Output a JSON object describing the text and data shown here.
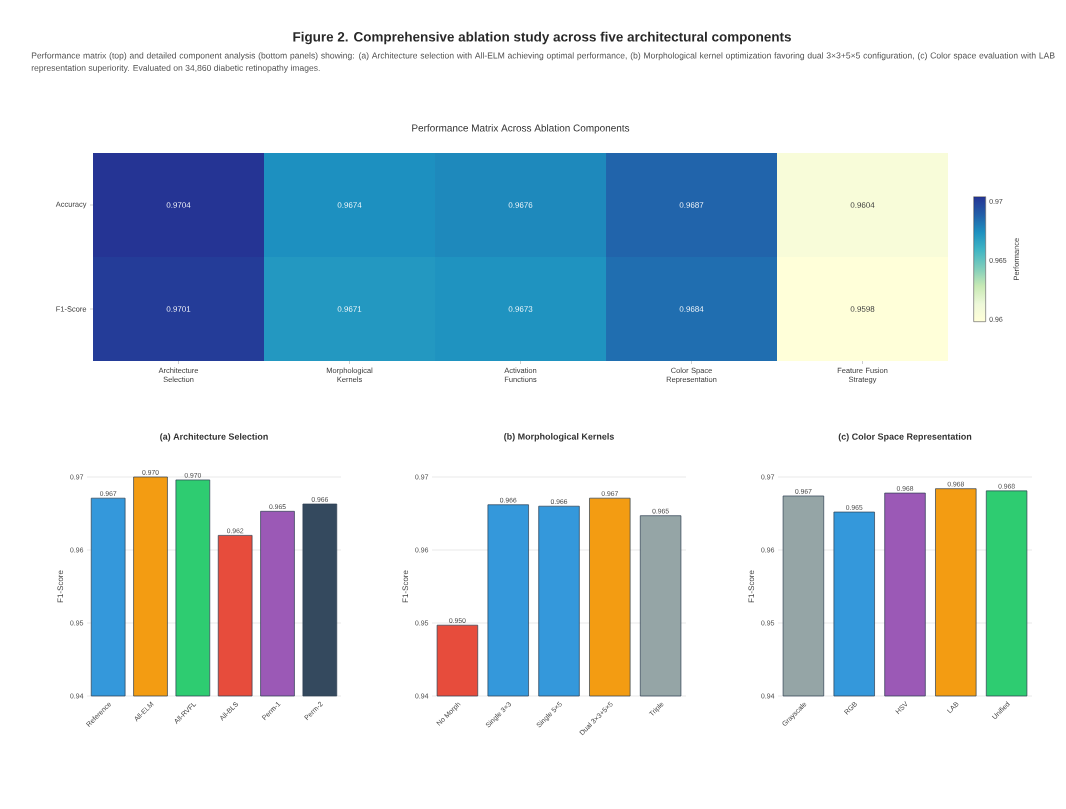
{
  "chart_data": [
    {
      "type": "other",
      "title": "Figure 2. Comprehensive ablation study across five architectural components",
      "subtitle": "Performance matrix (top) and detailed component analysis (bottom panels) showing: (a) Architecture selection with All-ELM achieving optimal performance, (b) Morphological kernel optimization favoring dual 3×3+5×5 configuration, (c) Color space evaluation with LAB representation superiority. Evaluated on 34,860 diabetic retinopathy images."
    },
    {
      "type": "heatmap",
      "title": "Performance Matrix Across Ablation Components",
      "categories": [
        "Architecture Selection",
        "Morphological Kernels",
        "Activation Functions",
        "Color Space Representation",
        "Feature Fusion Strategy"
      ],
      "y_categories": [
        "Accuracy",
        "F1-Score"
      ],
      "cells": [
        [
          0.9704,
          0.9674,
          0.9676,
          0.9687,
          0.9604
        ],
        [
          0.9701,
          0.9671,
          0.9673,
          0.9684,
          0.9598
        ]
      ],
      "clim": [
        0.9598,
        0.9704
      ],
      "cticks": [
        0.96,
        0.965,
        0.97
      ],
      "clabel": "Performance",
      "data_labels": true
    },
    {
      "type": "bar",
      "title": "(a) Architecture Selection",
      "ylabel": "F1-Score",
      "categories": [
        "Reference",
        "All-ELM",
        "All-RVFL",
        "All-BLS",
        "Perm-1",
        "Perm-2"
      ],
      "values": [
        0.9671,
        0.97,
        0.9696,
        0.962,
        0.9653,
        0.9663
      ],
      "value_labels": [
        "0.967",
        "0.970",
        "0.970",
        "0.962",
        "0.965",
        "0.966"
      ],
      "colors": [
        "#3498db",
        "#f39c12",
        "#2ecc71",
        "#e74c3c",
        "#9b59b6",
        "#34495e"
      ],
      "ylim": [
        0.94,
        0.97
      ],
      "yticks": [
        0.94,
        0.95,
        0.96,
        0.97
      ],
      "grid": "y"
    },
    {
      "type": "bar",
      "title": "(b) Morphological Kernels",
      "ylabel": "F1-Score",
      "categories": [
        "No Morph",
        "Single 3×3",
        "Single 5×5",
        "Dual 3×3+5×5",
        "Triple"
      ],
      "values": [
        0.9497,
        0.9662,
        0.966,
        0.9671,
        0.9647
      ],
      "value_labels": [
        "0.950",
        "0.966",
        "0.966",
        "0.967",
        "0.965"
      ],
      "colors": [
        "#e74c3c",
        "#3498db",
        "#3498db",
        "#f39c12",
        "#95a5a6"
      ],
      "ylim": [
        0.94,
        0.97
      ],
      "yticks": [
        0.94,
        0.95,
        0.96,
        0.97
      ],
      "grid": "y"
    },
    {
      "type": "bar",
      "title": "(c) Color Space Representation",
      "ylabel": "F1-Score",
      "categories": [
        "Grayscale",
        "RGB",
        "HSV",
        "LAB",
        "Unified"
      ],
      "values": [
        0.9674,
        0.9652,
        0.9678,
        0.9684,
        0.9681
      ],
      "value_labels": [
        "0.967",
        "0.965",
        "0.968",
        "0.968",
        "0.968"
      ],
      "colors": [
        "#95a5a6",
        "#3498db",
        "#9b59b6",
        "#f39c12",
        "#2ecc71"
      ],
      "ylim": [
        0.94,
        0.97
      ],
      "yticks": [
        0.94,
        0.95,
        0.96,
        0.97
      ],
      "grid": "y"
    }
  ]
}
